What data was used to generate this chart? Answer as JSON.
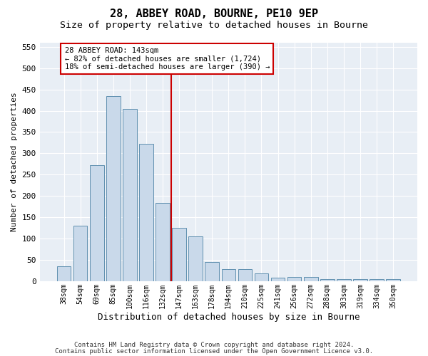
{
  "title1": "28, ABBEY ROAD, BOURNE, PE10 9EP",
  "title2": "Size of property relative to detached houses in Bourne",
  "xlabel": "Distribution of detached houses by size in Bourne",
  "ylabel": "Number of detached properties",
  "categories": [
    "38sqm",
    "54sqm",
    "69sqm",
    "85sqm",
    "100sqm",
    "116sqm",
    "132sqm",
    "147sqm",
    "163sqm",
    "178sqm",
    "194sqm",
    "210sqm",
    "225sqm",
    "241sqm",
    "256sqm",
    "272sqm",
    "288sqm",
    "303sqm",
    "319sqm",
    "334sqm",
    "350sqm"
  ],
  "values": [
    35,
    130,
    272,
    435,
    405,
    322,
    183,
    125,
    104,
    45,
    28,
    28,
    17,
    7,
    9,
    9,
    5,
    4,
    5,
    4,
    5
  ],
  "bar_color": "#c9d9ea",
  "bar_edge_color": "#6090b0",
  "vline_color": "#cc0000",
  "annotation_line1": "28 ABBEY ROAD: 143sqm",
  "annotation_line2": "← 82% of detached houses are smaller (1,724)",
  "annotation_line3": "18% of semi-detached houses are larger (390) →",
  "annotation_box_color": "#cc0000",
  "ylim": [
    0,
    560
  ],
  "yticks": [
    0,
    50,
    100,
    150,
    200,
    250,
    300,
    350,
    400,
    450,
    500,
    550
  ],
  "background_color": "#e8eef5",
  "footer_line1": "Contains HM Land Registry data © Crown copyright and database right 2024.",
  "footer_line2": "Contains public sector information licensed under the Open Government Licence v3.0.",
  "title1_fontsize": 11,
  "title2_fontsize": 9.5,
  "bar_label_fontsize": 7,
  "ylabel_fontsize": 8,
  "xlabel_fontsize": 9
}
